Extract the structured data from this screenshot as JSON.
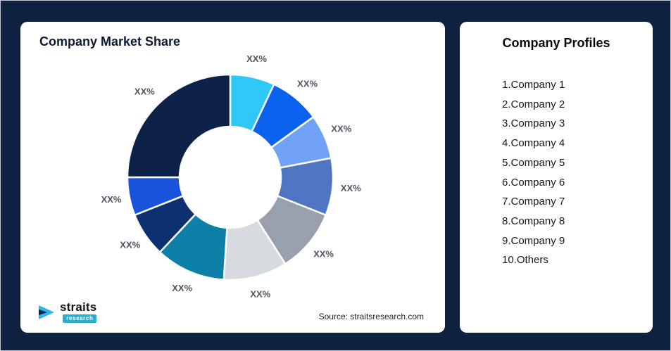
{
  "page": {
    "background_color": "#0E2240"
  },
  "chart_card": {
    "title": "Company Market Share",
    "source": "Source: straitsresearch.com"
  },
  "logo": {
    "brand": "straits",
    "sub": "research",
    "accent_color": "#29AECE"
  },
  "profiles": {
    "title": "Company Profiles",
    "items": [
      "1.Company 1",
      "2.Company 2",
      "3.Company 3",
      "4.Company 4",
      "5.Company 5",
      "6.Company 6",
      "7.Company 7",
      "8.Company 8",
      "9.Company 9",
      "10.Others"
    ]
  },
  "chart_data": {
    "type": "pie",
    "subtype": "donut",
    "title": "Company Market Share",
    "legend": "none",
    "center": [
      298,
      221
    ],
    "outer_radius": 146,
    "inner_radius": 72,
    "label_radius": 172,
    "note": "all slice labels are placeholder percentages as shown",
    "segments": [
      {
        "name": "segment-1",
        "label": "XX%",
        "value": 7,
        "color": "#2FC8F6"
      },
      {
        "name": "segment-2",
        "label": "XX%",
        "value": 8,
        "color": "#0A62EF"
      },
      {
        "name": "segment-3",
        "label": "XX%",
        "value": 7,
        "color": "#6FA2F4"
      },
      {
        "name": "segment-4",
        "label": "XX%",
        "value": 9,
        "color": "#4E74C2"
      },
      {
        "name": "segment-5",
        "label": "XX%",
        "value": 10,
        "color": "#97A0AC"
      },
      {
        "name": "segment-6",
        "label": "XX%",
        "value": 10,
        "color": "#D7DADF"
      },
      {
        "name": "segment-7",
        "label": "XX%",
        "value": 11,
        "color": "#0D80A8"
      },
      {
        "name": "segment-8",
        "label": "XX%",
        "value": 7,
        "color": "#0D3070"
      },
      {
        "name": "segment-9",
        "label": "XX%",
        "value": 6,
        "color": "#1A53DB"
      },
      {
        "name": "segment-10",
        "label": "XX%",
        "value": 25,
        "color": "#0D2149"
      }
    ]
  }
}
